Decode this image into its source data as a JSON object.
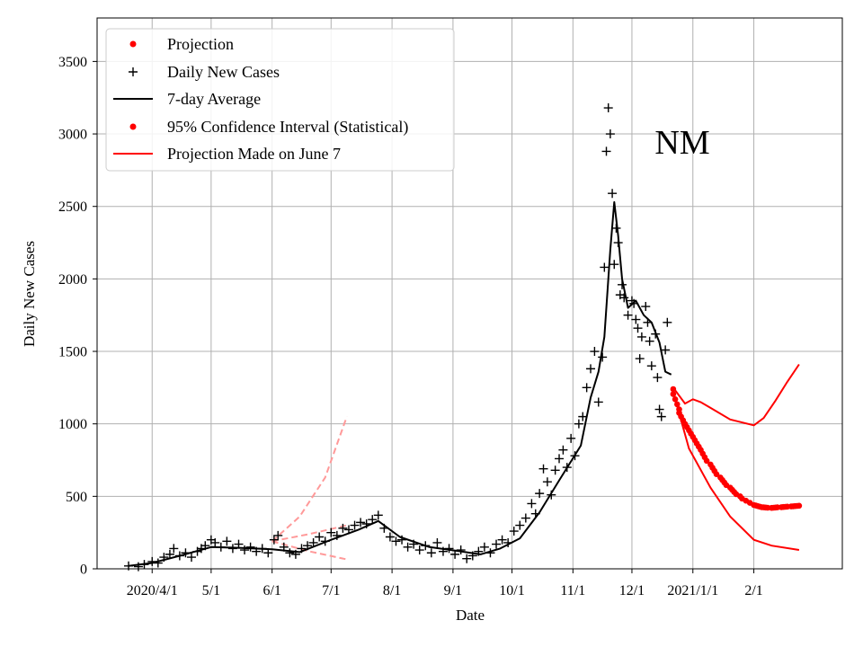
{
  "chart_data": {
    "type": "line",
    "title": "",
    "annotation": "NM",
    "xlabel": "Date",
    "ylabel": "Daily New Cases",
    "x_tick_labels": [
      "2020/4/1",
      "5/1",
      "6/1",
      "7/1",
      "8/1",
      "9/1",
      "10/1",
      "11/1",
      "12/1",
      "2021/1/1",
      "2/1"
    ],
    "y_tick_labels": [
      "0",
      "500",
      "1000",
      "1500",
      "2000",
      "2500",
      "3000",
      "3500"
    ],
    "yticks": [
      0,
      500,
      1000,
      1500,
      2000,
      2500,
      3000,
      3500
    ],
    "xlim": [
      "2020-03-04",
      "2021-03-18"
    ],
    "ylim": [
      0,
      3800
    ],
    "grid": true,
    "legend_position": "top-left",
    "legend": [
      {
        "label": "Projection",
        "kind": "dot",
        "color": "#ff0000"
      },
      {
        "label": "Daily New Cases",
        "kind": "plus",
        "color": "#000000"
      },
      {
        "label": "7-day Average",
        "kind": "line",
        "color": "#000000"
      },
      {
        "label": "95% Confidence Interval (Statistical)",
        "kind": "dot",
        "color": "#ff0000"
      },
      {
        "label": "Projection Made on June 7",
        "kind": "line",
        "color": "#ff0000"
      }
    ],
    "series": [
      {
        "name": "Daily New Cases",
        "kind": "plus",
        "color": "#000000",
        "points": [
          [
            "2020-03-20",
            20
          ],
          [
            "2020-03-25",
            15
          ],
          [
            "2020-03-28",
            30
          ],
          [
            "2020-04-01",
            50
          ],
          [
            "2020-04-04",
            40
          ],
          [
            "2020-04-07",
            80
          ],
          [
            "2020-04-10",
            100
          ],
          [
            "2020-04-12",
            140
          ],
          [
            "2020-04-15",
            90
          ],
          [
            "2020-04-18",
            110
          ],
          [
            "2020-04-21",
            80
          ],
          [
            "2020-04-24",
            120
          ],
          [
            "2020-04-26",
            140
          ],
          [
            "2020-04-28",
            160
          ],
          [
            "2020-05-01",
            200
          ],
          [
            "2020-05-03",
            180
          ],
          [
            "2020-05-06",
            150
          ],
          [
            "2020-05-09",
            190
          ],
          [
            "2020-05-12",
            140
          ],
          [
            "2020-05-15",
            170
          ],
          [
            "2020-05-18",
            130
          ],
          [
            "2020-05-21",
            150
          ],
          [
            "2020-05-24",
            120
          ],
          [
            "2020-05-27",
            140
          ],
          [
            "2020-05-30",
            110
          ],
          [
            "2020-06-02",
            200
          ],
          [
            "2020-06-04",
            230
          ],
          [
            "2020-06-07",
            150
          ],
          [
            "2020-06-10",
            110
          ],
          [
            "2020-06-13",
            100
          ],
          [
            "2020-06-16",
            140
          ],
          [
            "2020-06-19",
            160
          ],
          [
            "2020-06-22",
            180
          ],
          [
            "2020-06-25",
            220
          ],
          [
            "2020-06-28",
            190
          ],
          [
            "2020-07-01",
            250
          ],
          [
            "2020-07-04",
            230
          ],
          [
            "2020-07-07",
            280
          ],
          [
            "2020-07-10",
            270
          ],
          [
            "2020-07-13",
            300
          ],
          [
            "2020-07-16",
            320
          ],
          [
            "2020-07-19",
            310
          ],
          [
            "2020-07-22",
            340
          ],
          [
            "2020-07-25",
            370
          ],
          [
            "2020-07-28",
            280
          ],
          [
            "2020-07-31",
            220
          ],
          [
            "2020-08-03",
            190
          ],
          [
            "2020-08-06",
            200
          ],
          [
            "2020-08-09",
            150
          ],
          [
            "2020-08-12",
            170
          ],
          [
            "2020-08-15",
            130
          ],
          [
            "2020-08-18",
            160
          ],
          [
            "2020-08-21",
            110
          ],
          [
            "2020-08-24",
            180
          ],
          [
            "2020-08-27",
            120
          ],
          [
            "2020-08-30",
            140
          ],
          [
            "2020-09-02",
            100
          ],
          [
            "2020-09-05",
            130
          ],
          [
            "2020-09-08",
            70
          ],
          [
            "2020-09-11",
            90
          ],
          [
            "2020-09-14",
            120
          ],
          [
            "2020-09-17",
            150
          ],
          [
            "2020-09-20",
            110
          ],
          [
            "2020-09-23",
            170
          ],
          [
            "2020-09-26",
            200
          ],
          [
            "2020-09-29",
            180
          ],
          [
            "2020-10-02",
            260
          ],
          [
            "2020-10-05",
            300
          ],
          [
            "2020-10-08",
            350
          ],
          [
            "2020-10-11",
            450
          ],
          [
            "2020-10-13",
            380
          ],
          [
            "2020-10-15",
            520
          ],
          [
            "2020-10-17",
            690
          ],
          [
            "2020-10-19",
            600
          ],
          [
            "2020-10-21",
            510
          ],
          [
            "2020-10-23",
            680
          ],
          [
            "2020-10-25",
            760
          ],
          [
            "2020-10-27",
            820
          ],
          [
            "2020-10-29",
            700
          ],
          [
            "2020-10-31",
            900
          ],
          [
            "2020-11-02",
            780
          ],
          [
            "2020-11-04",
            1000
          ],
          [
            "2020-11-06",
            1050
          ],
          [
            "2020-11-08",
            1250
          ],
          [
            "2020-11-10",
            1380
          ],
          [
            "2020-11-12",
            1500
          ],
          [
            "2020-11-14",
            1150
          ],
          [
            "2020-11-16",
            1460
          ],
          [
            "2020-11-17",
            2080
          ],
          [
            "2020-11-18",
            2880
          ],
          [
            "2020-11-19",
            3180
          ],
          [
            "2020-11-20",
            3000
          ],
          [
            "2020-11-21",
            2590
          ],
          [
            "2020-11-22",
            2100
          ],
          [
            "2020-11-23",
            2350
          ],
          [
            "2020-11-24",
            2250
          ],
          [
            "2020-11-25",
            1890
          ],
          [
            "2020-11-26",
            1960
          ],
          [
            "2020-11-27",
            1870
          ],
          [
            "2020-11-29",
            1750
          ],
          [
            "2020-12-01",
            1850
          ],
          [
            "2020-12-02",
            1830
          ],
          [
            "2020-12-03",
            1720
          ],
          [
            "2020-12-04",
            1660
          ],
          [
            "2020-12-05",
            1450
          ],
          [
            "2020-12-06",
            1600
          ],
          [
            "2020-12-08",
            1810
          ],
          [
            "2020-12-09",
            1700
          ],
          [
            "2020-12-10",
            1570
          ],
          [
            "2020-12-11",
            1400
          ],
          [
            "2020-12-13",
            1620
          ],
          [
            "2020-12-14",
            1320
          ],
          [
            "2020-12-15",
            1100
          ],
          [
            "2020-12-16",
            1050
          ],
          [
            "2020-12-18",
            1510
          ],
          [
            "2020-12-19",
            1700
          ]
        ]
      },
      {
        "name": "7-day Average",
        "kind": "line",
        "color": "#000000",
        "points": [
          [
            "2020-03-20",
            20
          ],
          [
            "2020-04-01",
            40
          ],
          [
            "2020-04-15",
            90
          ],
          [
            "2020-05-01",
            150
          ],
          [
            "2020-05-15",
            145
          ],
          [
            "2020-06-01",
            135
          ],
          [
            "2020-06-15",
            115
          ],
          [
            "2020-07-01",
            200
          ],
          [
            "2020-07-15",
            270
          ],
          [
            "2020-07-25",
            330
          ],
          [
            "2020-08-05",
            220
          ],
          [
            "2020-08-20",
            150
          ],
          [
            "2020-09-05",
            120
          ],
          [
            "2020-09-15",
            100
          ],
          [
            "2020-09-25",
            140
          ],
          [
            "2020-10-05",
            210
          ],
          [
            "2020-10-15",
            390
          ],
          [
            "2020-10-25",
            610
          ],
          [
            "2020-11-05",
            850
          ],
          [
            "2020-11-10",
            1180
          ],
          [
            "2020-11-14",
            1360
          ],
          [
            "2020-11-17",
            1600
          ],
          [
            "2020-11-20",
            2200
          ],
          [
            "2020-11-22",
            2530
          ],
          [
            "2020-11-24",
            2300
          ],
          [
            "2020-11-26",
            2000
          ],
          [
            "2020-11-29",
            1800
          ],
          [
            "2020-12-03",
            1850
          ],
          [
            "2020-12-07",
            1750
          ],
          [
            "2020-12-11",
            1700
          ],
          [
            "2020-12-15",
            1560
          ],
          [
            "2020-12-18",
            1360
          ],
          [
            "2020-12-21",
            1340
          ]
        ]
      },
      {
        "name": "Projection",
        "kind": "dots",
        "color": "#ff0000",
        "points": [
          [
            "2020-12-22",
            1240
          ],
          [
            "2020-12-25",
            1100
          ],
          [
            "2020-12-28",
            1000
          ],
          [
            "2021-01-01",
            910
          ],
          [
            "2021-01-05",
            820
          ],
          [
            "2021-01-10",
            720
          ],
          [
            "2021-01-15",
            630
          ],
          [
            "2021-01-20",
            560
          ],
          [
            "2021-01-25",
            500
          ],
          [
            "2021-02-01",
            440
          ],
          [
            "2021-02-05",
            425
          ],
          [
            "2021-02-10",
            420
          ],
          [
            "2021-02-15",
            425
          ],
          [
            "2021-02-20",
            430
          ],
          [
            "2021-02-24",
            435
          ]
        ]
      },
      {
        "name": "95% Confidence Interval (Statistical)",
        "kind": "band-lines",
        "color": "#ff0000",
        "upper": [
          [
            "2020-12-22",
            1250
          ],
          [
            "2020-12-28",
            1140
          ],
          [
            "2021-01-01",
            1170
          ],
          [
            "2021-01-05",
            1150
          ],
          [
            "2021-01-10",
            1110
          ],
          [
            "2021-01-20",
            1030
          ],
          [
            "2021-02-01",
            990
          ],
          [
            "2021-02-06",
            1040
          ],
          [
            "2021-02-12",
            1160
          ],
          [
            "2021-02-18",
            1290
          ],
          [
            "2021-02-24",
            1410
          ]
        ],
        "lower": [
          [
            "2020-12-22",
            1220
          ],
          [
            "2020-12-30",
            830
          ],
          [
            "2021-01-10",
            560
          ],
          [
            "2021-01-20",
            360
          ],
          [
            "2021-02-01",
            200
          ],
          [
            "2021-02-10",
            160
          ],
          [
            "2021-02-24",
            130
          ]
        ]
      },
      {
        "name": "Projection Made on June 7",
        "kind": "dashed-fan",
        "color": "#ff9999",
        "upper": [
          [
            "2020-06-01",
            190
          ],
          [
            "2020-06-15",
            360
          ],
          [
            "2020-06-28",
            630
          ],
          [
            "2020-07-09",
            1050
          ]
        ],
        "middle": [
          [
            "2020-06-01",
            190
          ],
          [
            "2020-06-20",
            240
          ],
          [
            "2020-07-09",
            300
          ]
        ],
        "lower": [
          [
            "2020-06-01",
            190
          ],
          [
            "2020-06-20",
            120
          ],
          [
            "2020-07-09",
            65
          ]
        ]
      }
    ]
  }
}
